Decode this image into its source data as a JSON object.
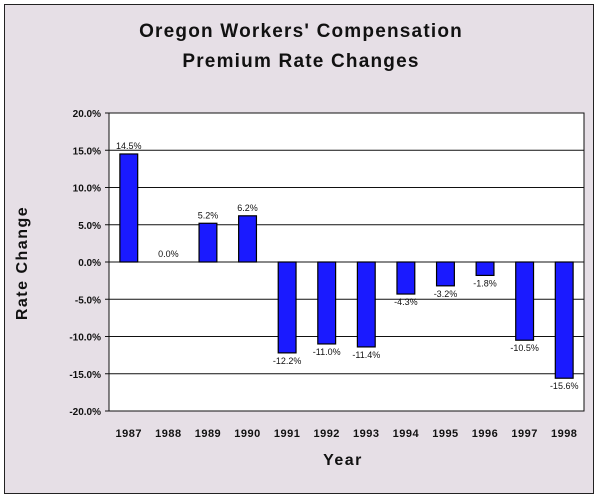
{
  "chart_data": {
    "type": "bar",
    "title_lines": [
      "Oregon Workers' Compensation",
      "Premium Rate Changes"
    ],
    "xlabel": "Year",
    "ylabel": "Rate Change",
    "categories": [
      "1987",
      "1988",
      "1989",
      "1990",
      "1991",
      "1992",
      "1993",
      "1994",
      "1995",
      "1996",
      "1997",
      "1998"
    ],
    "values": [
      14.5,
      0.0,
      5.2,
      6.2,
      -12.2,
      -11.0,
      -11.4,
      -4.3,
      -3.2,
      -1.8,
      -10.5,
      -15.6
    ],
    "data_labels": [
      "14.5%",
      "0.0%",
      "5.2%",
      "6.2%",
      "-12.2%",
      "-11.0%",
      "-11.4%",
      "-4.3%",
      "-3.2%",
      "-1.8%",
      "-10.5%",
      "-15.6%"
    ],
    "ylim": [
      -20,
      20
    ],
    "yticks": [
      20,
      15,
      10,
      5,
      0,
      -5,
      -10,
      -15,
      -20
    ],
    "ytick_labels": [
      "20.0%",
      "15.0%",
      "10.0%",
      "5.0%",
      "0.0%",
      "-5.0%",
      "-10.0%",
      "-15.0%",
      "-20.0%"
    ],
    "grid": true,
    "bar_color": "#1a1aff",
    "background_color": "#e6dfe6",
    "plot_background_color": "#ffffff"
  }
}
